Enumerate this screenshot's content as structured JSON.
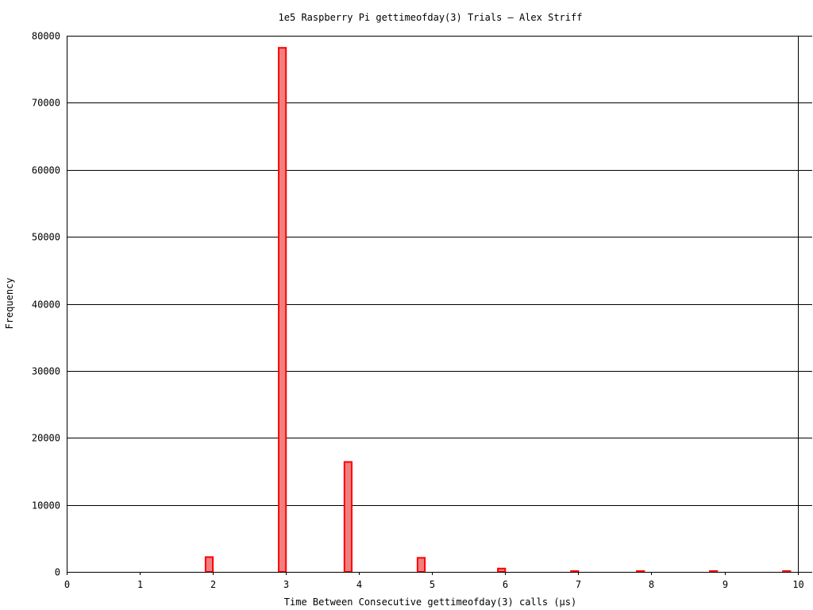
{
  "chart_data": {
    "type": "bar",
    "title": "1e5 Raspberry Pi gettimeofday(3) Trials — Alex Striff",
    "xlabel": "Time Between Consecutive gettimeofday(3) calls (µs)",
    "ylabel": "Frequency",
    "xlim": [
      0,
      10.2
    ],
    "ylim": [
      0,
      80000
    ],
    "x_ticks": [
      0,
      1,
      2,
      3,
      4,
      5,
      6,
      7,
      8,
      9,
      10
    ],
    "y_ticks": [
      0,
      10000,
      20000,
      30000,
      40000,
      50000,
      60000,
      70000,
      80000
    ],
    "grid": true,
    "bar_width": 0.1,
    "x": [
      1.9,
      2.9,
      3.8,
      4.8,
      5.9,
      6.9,
      7.8,
      8.8,
      9.8
    ],
    "values": [
      2200,
      78200,
      16400,
      2100,
      500,
      50,
      40,
      30,
      20
    ],
    "colors": {
      "fill": "#f08080",
      "stroke": "#ff0000"
    }
  }
}
